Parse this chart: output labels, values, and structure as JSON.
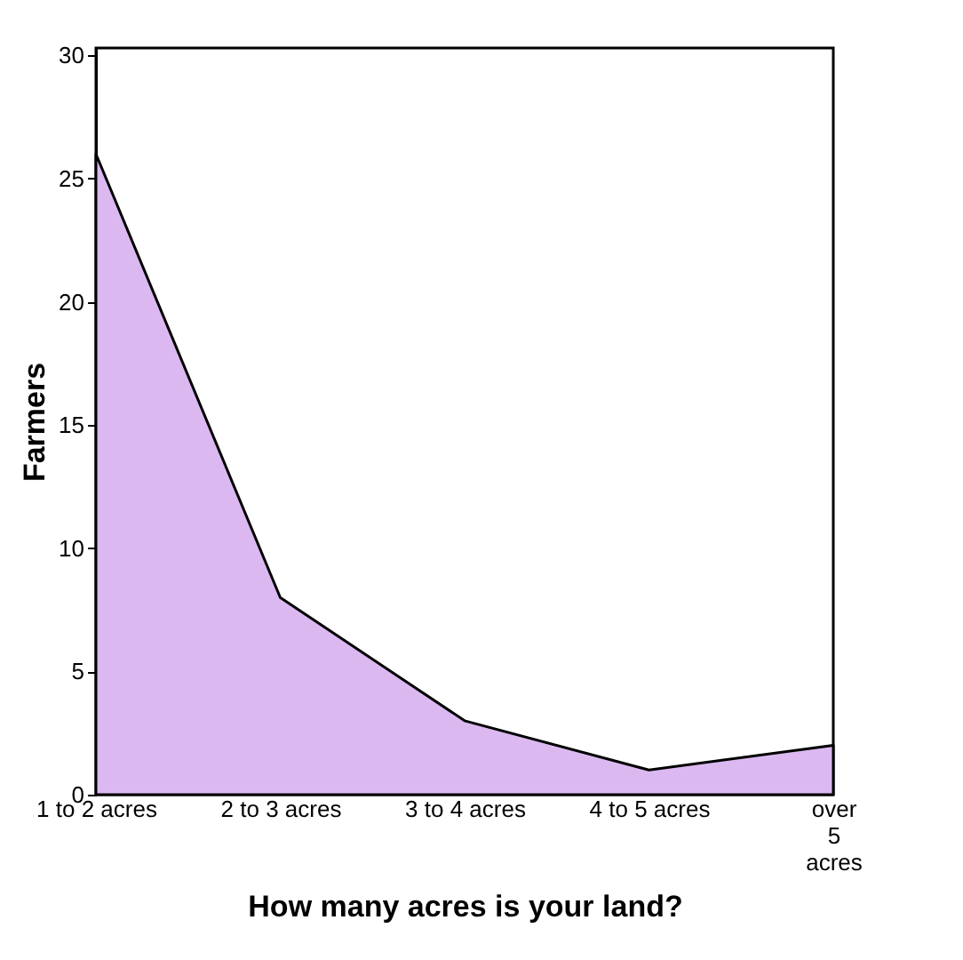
{
  "chart_data": {
    "type": "area",
    "xlabel": "How many acres is your land?",
    "ylabel": "Farmers",
    "categories": [
      "1 to 2 acres",
      "2 to 3 acres",
      "3 to 4 acres",
      "4 to 5 acres",
      "over 5 acres"
    ],
    "series": [
      {
        "color": "#dbb9f0",
        "values": [
          26,
          8,
          3,
          1,
          2
        ]
      }
    ],
    "ylim": [
      0,
      30.3
    ],
    "yticks": [
      0,
      5,
      10,
      15,
      20,
      25,
      30
    ],
    "grid": false
  }
}
